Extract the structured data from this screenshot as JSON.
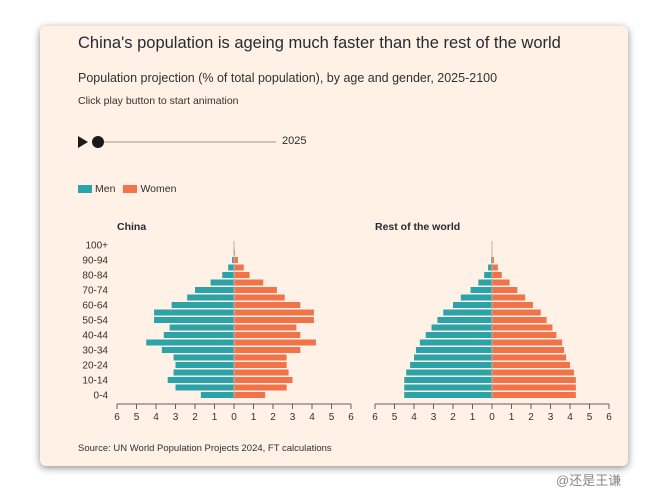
{
  "header": {
    "title": "China's population is ageing much faster than the rest of the world",
    "subtitle": "Population projection (% of total population), by age and gender, 2025-2100",
    "hint": "Click play button to start animation"
  },
  "controls": {
    "year": "2025",
    "play_icon": "play-icon"
  },
  "legend": [
    {
      "label": "Men",
      "color": "#2ba3a8"
    },
    {
      "label": "Women",
      "color": "#f2734a"
    }
  ],
  "footer": "Source: UN World Population Projects 2024, FT calculations",
  "watermark": "@还是王谦",
  "colors": {
    "men": "#2ba3a8",
    "women": "#f2734a",
    "background": "#fff1e6"
  },
  "chart_data": [
    {
      "type": "bar",
      "title": "China",
      "orientation": "horizontal-pyramid",
      "categories": [
        "0-4",
        "5-9",
        "10-14",
        "15-19",
        "20-24",
        "25-29",
        "30-34",
        "35-39",
        "40-44",
        "45-49",
        "50-54",
        "55-59",
        "60-64",
        "65-69",
        "70-74",
        "75-79",
        "80-84",
        "85-89",
        "90-94",
        "95-99",
        "100+"
      ],
      "category_labels_shown": [
        "100+",
        "90-94",
        "80-84",
        "70-74",
        "60-64",
        "50-54",
        "40-44",
        "30-34",
        "20-24",
        "10-14",
        "0-4"
      ],
      "series": [
        {
          "name": "Men",
          "values": [
            1.7,
            3.0,
            3.4,
            3.1,
            3.0,
            3.1,
            3.7,
            4.5,
            3.6,
            3.3,
            4.1,
            4.1,
            3.2,
            2.4,
            2.0,
            1.2,
            0.6,
            0.3,
            0.1,
            0.02,
            0.0
          ]
        },
        {
          "name": "Women",
          "values": [
            1.6,
            2.7,
            3.0,
            2.8,
            2.7,
            2.7,
            3.4,
            4.2,
            3.4,
            3.2,
            4.1,
            4.1,
            3.4,
            2.6,
            2.2,
            1.5,
            0.8,
            0.5,
            0.2,
            0.05,
            0.0
          ]
        }
      ],
      "xlim": [
        -6,
        6
      ],
      "x_ticks": [
        "6",
        "5",
        "4",
        "3",
        "2",
        "1",
        "0",
        "1",
        "2",
        "3",
        "4",
        "5",
        "6"
      ]
    },
    {
      "type": "bar",
      "title": "Rest of the world",
      "orientation": "horizontal-pyramid",
      "categories": [
        "0-4",
        "5-9",
        "10-14",
        "15-19",
        "20-24",
        "25-29",
        "30-34",
        "35-39",
        "40-44",
        "45-49",
        "50-54",
        "55-59",
        "60-64",
        "65-69",
        "70-74",
        "75-79",
        "80-84",
        "85-89",
        "90-94",
        "95-99",
        "100+"
      ],
      "category_labels_shown": [
        "100+",
        "90-94",
        "80-84",
        "70-74",
        "60-64",
        "50-54",
        "40-44",
        "30-34",
        "20-24",
        "10-14",
        "0-4"
      ],
      "series": [
        {
          "name": "Men",
          "values": [
            4.5,
            4.5,
            4.5,
            4.4,
            4.2,
            4.0,
            3.9,
            3.7,
            3.4,
            3.1,
            2.8,
            2.5,
            2.0,
            1.6,
            1.1,
            0.7,
            0.4,
            0.2,
            0.05,
            0.01,
            0.0
          ]
        },
        {
          "name": "Women",
          "values": [
            4.3,
            4.3,
            4.3,
            4.2,
            4.0,
            3.8,
            3.7,
            3.6,
            3.3,
            3.1,
            2.8,
            2.5,
            2.1,
            1.7,
            1.3,
            0.9,
            0.5,
            0.3,
            0.1,
            0.02,
            0.0
          ]
        }
      ],
      "xlim": [
        -6,
        6
      ],
      "x_ticks": [
        "6",
        "5",
        "4",
        "3",
        "2",
        "1",
        "0",
        "1",
        "2",
        "3",
        "4",
        "5",
        "6"
      ]
    }
  ]
}
